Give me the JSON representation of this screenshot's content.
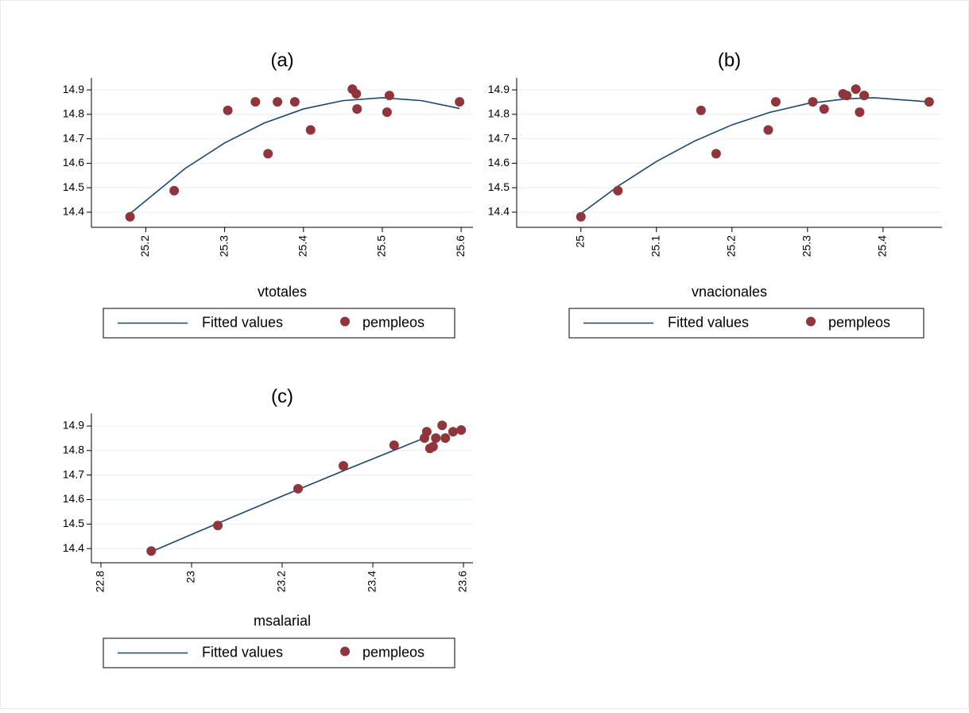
{
  "chart_data": [
    {
      "type": "scatter",
      "title": "(a)",
      "x_label": "vtotales",
      "xlim": [
        25.131,
        25.615
      ],
      "ylim": [
        14.338,
        14.949
      ],
      "xticks": [
        25.2,
        25.3,
        25.4,
        25.5,
        25.6
      ],
      "yticks": [
        14.4,
        14.5,
        14.6,
        14.7,
        14.8,
        14.9
      ],
      "grid": true,
      "legend": "bottom",
      "series": [
        {
          "name": "Fitted values",
          "type": "line",
          "color": "#1a476f",
          "x": [
            25.18,
            25.25,
            25.3,
            25.35,
            25.4,
            25.45,
            25.5,
            25.55,
            25.598
          ],
          "values": [
            14.394,
            14.579,
            14.683,
            14.764,
            14.822,
            14.856,
            14.868,
            14.856,
            14.824
          ]
        },
        {
          "name": "pempleos",
          "type": "scatter",
          "color": "#90353b",
          "x": [
            25.18,
            25.236,
            25.304,
            25.339,
            25.355,
            25.367,
            25.389,
            25.409,
            25.462,
            25.467,
            25.468,
            25.506,
            25.509,
            25.598
          ],
          "values": [
            14.381,
            14.488,
            14.816,
            14.851,
            14.639,
            14.851,
            14.851,
            14.736,
            14.903,
            14.884,
            14.822,
            14.809,
            14.877,
            14.851
          ]
        }
      ]
    },
    {
      "type": "scatter",
      "title": "(b)",
      "x_label": "vnacionales",
      "xlim": [
        24.915,
        25.478
      ],
      "ylim": [
        14.338,
        14.949
      ],
      "xticks": [
        25,
        25.1,
        25.2,
        25.3,
        25.4
      ],
      "yticks": [
        14.4,
        14.5,
        14.6,
        14.7,
        14.8,
        14.9
      ],
      "grid": true,
      "legend": "bottom",
      "series": [
        {
          "name": "Fitted values",
          "type": "line",
          "color": "#1a476f",
          "x": [
            25.0,
            25.05,
            25.1,
            25.15,
            25.2,
            25.25,
            25.3,
            25.35,
            25.388,
            25.461
          ],
          "values": [
            14.394,
            14.508,
            14.607,
            14.69,
            14.757,
            14.808,
            14.844,
            14.863,
            14.868,
            14.851
          ]
        },
        {
          "name": "pempleos",
          "type": "scatter",
          "color": "#90353b",
          "x": [
            25.0,
            25.049,
            25.159,
            25.179,
            25.248,
            25.258,
            25.307,
            25.322,
            25.347,
            25.352,
            25.364,
            25.369,
            25.375,
            25.461
          ],
          "values": [
            14.381,
            14.488,
            14.816,
            14.639,
            14.736,
            14.851,
            14.851,
            14.822,
            14.884,
            14.877,
            14.903,
            14.809,
            14.877,
            14.851
          ]
        }
      ]
    },
    {
      "type": "scatter",
      "title": "(c)",
      "x_label": "msalarial",
      "xlim": [
        22.779,
        23.621
      ],
      "ylim": [
        14.342,
        14.952
      ],
      "xticks": [
        22.8,
        23,
        23.2,
        23.4,
        23.6
      ],
      "yticks": [
        14.4,
        14.5,
        14.6,
        14.7,
        14.8,
        14.9
      ],
      "grid": true,
      "legend": "bottom",
      "series": [
        {
          "name": "Fitted values",
          "type": "line",
          "color": "#1a476f",
          "x": [
            22.911,
            23.05,
            23.2,
            23.35,
            23.519
          ],
          "values": [
            14.387,
            14.497,
            14.614,
            14.729,
            14.855
          ]
        },
        {
          "name": "pempleos",
          "type": "scatter",
          "color": "#90353b",
          "x": [
            22.911,
            23.058,
            23.235,
            23.335,
            23.447,
            23.514,
            23.519,
            23.526,
            23.533,
            23.539,
            23.553,
            23.56,
            23.577,
            23.595
          ],
          "values": [
            14.39,
            14.494,
            14.644,
            14.738,
            14.822,
            14.851,
            14.877,
            14.809,
            14.816,
            14.851,
            14.903,
            14.851,
            14.877,
            14.884
          ]
        }
      ]
    }
  ]
}
